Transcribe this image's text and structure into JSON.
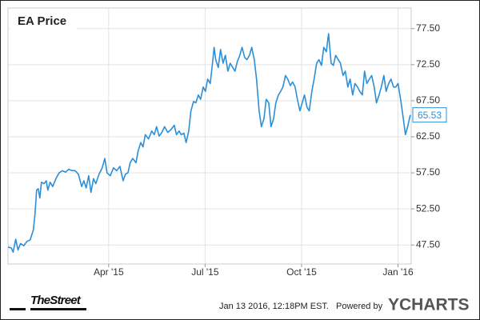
{
  "chart_data": {
    "type": "line",
    "title": "EA Price",
    "x": [
      -0.13,
      -0.03,
      0.03,
      0.11,
      0.18,
      0.26,
      0.36,
      0.46,
      0.56,
      0.66,
      0.71,
      0.76,
      0.81,
      0.86,
      0.91,
      0.99,
      1.06,
      1.11,
      1.18,
      1.26,
      1.36,
      1.46,
      1.56,
      1.66,
      1.76,
      1.86,
      1.96,
      2.06,
      2.16,
      2.23,
      2.3,
      2.38,
      2.45,
      2.53,
      2.6,
      2.7,
      2.8,
      2.88,
      2.95,
      3.05,
      3.15,
      3.25,
      3.35,
      3.45,
      3.52,
      3.6,
      3.67,
      3.75,
      3.85,
      3.92,
      4.0,
      4.07,
      4.14,
      4.24,
      4.34,
      4.42,
      4.49,
      4.57,
      4.64,
      4.74,
      4.84,
      4.94,
      5.04,
      5.11,
      5.19,
      5.26,
      5.34,
      5.41,
      5.49,
      5.56,
      5.64,
      5.71,
      5.79,
      5.86,
      5.94,
      6.01,
      6.08,
      6.16,
      6.23,
      6.28,
      6.33,
      6.41,
      6.48,
      6.56,
      6.63,
      6.71,
      6.78,
      6.86,
      6.93,
      7.0,
      7.08,
      7.15,
      7.23,
      7.3,
      7.38,
      7.45,
      7.53,
      7.6,
      7.68,
      7.75,
      7.83,
      7.9,
      7.98,
      8.05,
      8.13,
      8.2,
      8.28,
      8.35,
      8.42,
      8.5,
      8.57,
      8.65,
      8.72,
      8.8,
      8.87,
      8.95,
      9.02,
      9.09,
      9.17,
      9.24,
      9.32,
      9.39,
      9.47,
      9.54,
      9.62,
      9.69,
      9.77,
      9.84,
      9.92,
      9.99,
      10.06,
      10.14,
      10.21,
      10.29,
      10.36,
      10.44,
      10.51,
      10.59,
      10.66,
      10.74,
      10.81,
      10.89,
      10.96,
      11.03,
      11.11,
      11.18,
      11.26,
      11.33,
      11.41,
      11.48,
      11.56,
      11.63,
      11.71,
      11.78,
      11.86,
      11.93,
      12.0,
      12.08,
      12.15,
      12.23,
      12.3,
      12.38
    ],
    "series": [
      {
        "name": "EA Price",
        "color": "#2b8fd8",
        "values": [
          47.2,
          47.1,
          46.5,
          48.3,
          46.8,
          47.7,
          47.4,
          48.0,
          48.2,
          49.6,
          51.8,
          55.1,
          55.3,
          54.0,
          56.2,
          56.0,
          56.4,
          55.1,
          56.2,
          55.6,
          56.7,
          57.5,
          57.8,
          57.6,
          58.0,
          57.8,
          57.8,
          57.3,
          55.6,
          56.4,
          55.4,
          57.1,
          54.8,
          56.7,
          56.0,
          57.3,
          58.2,
          59.5,
          57.5,
          57.1,
          58.2,
          57.8,
          58.4,
          56.4,
          57.3,
          57.5,
          58.9,
          59.5,
          58.9,
          60.6,
          61.7,
          61.1,
          62.8,
          62.2,
          63.3,
          62.8,
          63.9,
          62.6,
          63.0,
          63.9,
          63.1,
          63.5,
          64.1,
          62.8,
          63.3,
          62.8,
          63.0,
          61.7,
          63.3,
          66.1,
          67.4,
          67.2,
          68.3,
          67.7,
          69.4,
          68.8,
          70.5,
          69.9,
          72.7,
          74.9,
          73.2,
          72.1,
          74.6,
          72.7,
          73.8,
          71.6,
          72.7,
          72.1,
          71.6,
          72.9,
          73.8,
          74.9,
          73.5,
          73.2,
          73.8,
          74.9,
          73.2,
          70.5,
          66.1,
          63.9,
          65.0,
          67.7,
          67.2,
          63.9,
          65.0,
          67.2,
          68.3,
          68.8,
          69.4,
          71.0,
          70.5,
          69.6,
          70.1,
          69.4,
          67.7,
          66.1,
          67.2,
          68.3,
          66.6,
          66.1,
          68.8,
          70.5,
          72.7,
          73.2,
          72.4,
          74.9,
          74.3,
          76.8,
          72.7,
          72.4,
          73.8,
          73.2,
          72.7,
          71.0,
          71.6,
          69.4,
          70.5,
          68.3,
          69.9,
          69.4,
          68.8,
          68.3,
          71.6,
          69.9,
          70.5,
          71.0,
          69.4,
          67.2,
          68.3,
          69.4,
          71.0,
          68.8,
          69.9,
          70.5,
          69.4,
          69.4,
          69.9,
          67.7,
          65.5,
          62.8,
          63.9,
          65.53
        ]
      }
    ],
    "xlim": [
      -0.13,
      12.41
    ],
    "xticks": [
      {
        "value": 3,
        "label": "Apr '15"
      },
      {
        "value": 6,
        "label": "Jul '15"
      },
      {
        "value": 9,
        "label": "Oct '15"
      },
      {
        "value": 12,
        "label": "Jan '16"
      }
    ],
    "ylim": [
      44.86,
      80.36
    ],
    "yticks": [
      {
        "value": 47.5,
        "label": "47.50"
      },
      {
        "value": 52.5,
        "label": "52.50"
      },
      {
        "value": 57.5,
        "label": "57.50"
      },
      {
        "value": 62.5,
        "label": "62.50"
      },
      {
        "value": 67.5,
        "label": "67.50"
      },
      {
        "value": 72.5,
        "label": "72.50"
      },
      {
        "value": 77.5,
        "label": "77.50"
      }
    ],
    "grid": true
  },
  "footer": {
    "logo": "TheStreet",
    "timestamp": "Jan 13 2016, 12:18PM EST.",
    "powered_by": "Powered by",
    "brand": "YCHARTS"
  }
}
